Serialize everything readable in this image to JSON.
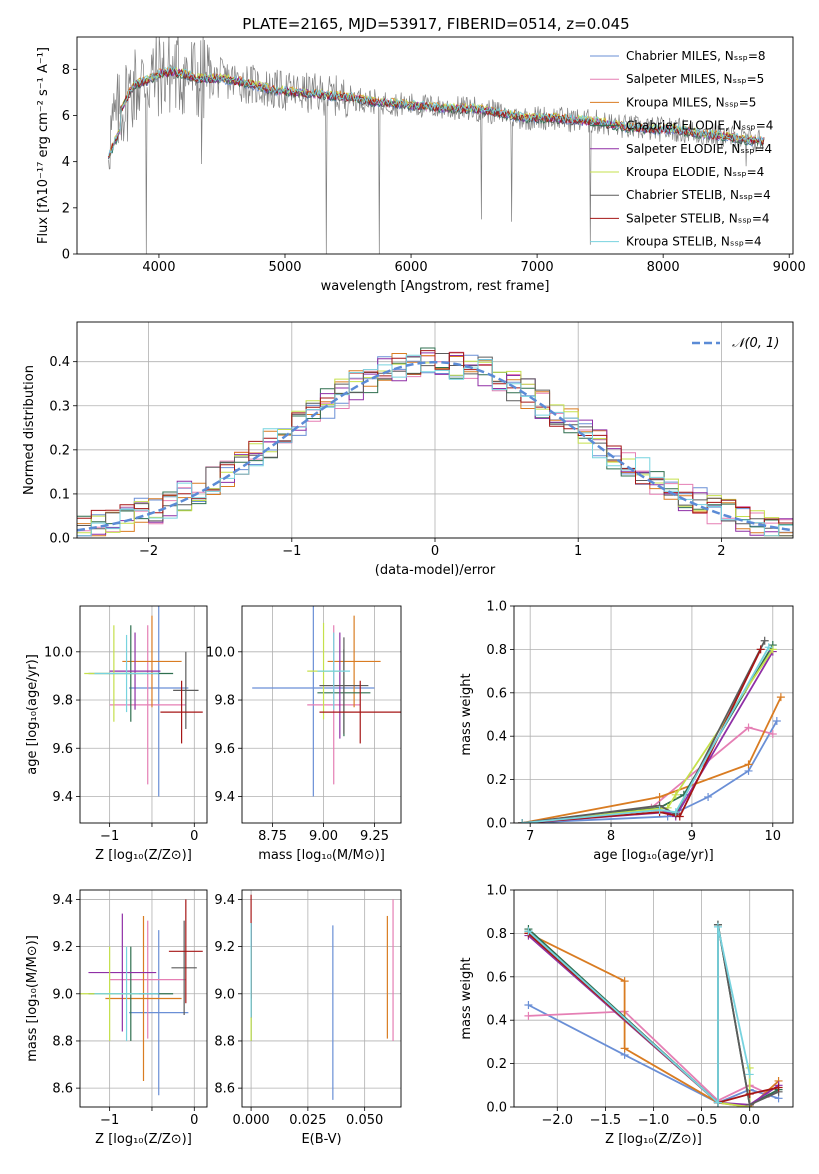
{
  "figure": {
    "title": "PLATE=2165, MJD=53917, FIBERID=0514, z=0.045"
  },
  "colors": {
    "series": [
      "#6a8fd6",
      "#e57fb4",
      "#d97c22",
      "#2f6f4f",
      "#8f2fa6",
      "#c5e04c",
      "#5c5c5c",
      "#a51616",
      "#77d3df"
    ],
    "grid": "#b0b0b0",
    "observed": "#808080"
  },
  "chart_data": [
    {
      "type": "line",
      "title": "PLATE=2165, MJD=53917, FIBERID=0514, z=0.045",
      "xlabel": "wavelength [Angstrom, rest frame]",
      "ylabel": "Flux [fλ10⁻¹⁷ erg cm⁻² s⁻¹ A⁻¹]",
      "xlim": [
        3350,
        9030
      ],
      "ylim": [
        0,
        9.4
      ],
      "xticks": [
        4000,
        5000,
        6000,
        7000,
        8000,
        9000
      ],
      "yticks": [
        0,
        2,
        4,
        6,
        8
      ],
      "grid": false,
      "legend_position": "top-right",
      "legend": [
        "Chabrier MILES, Nₛₛₚ=8",
        "Salpeter MILES, Nₛₛₚ=5",
        "Kroupa MILES, Nₛₛₚ=5",
        "Chabrier ELODIE, Nₛₛₚ=4",
        "Salpeter ELODIE, Nₛₛₚ=4",
        "Kroupa ELODIE, Nₛₛₚ=4",
        "Chabrier STELIB, Nₛₛₚ=4",
        "Salpeter STELIB, Nₛₛₚ=4",
        "Kroupa STELIB, Nₛₛₚ=4"
      ],
      "continuum": {
        "x": [
          3600,
          3700,
          3800,
          3900,
          4000,
          4100,
          4200,
          4300,
          4500,
          4700,
          4900,
          5100,
          5300,
          5500,
          5700,
          5900,
          6100,
          6300,
          6500,
          6700,
          6900,
          7100,
          7300,
          7500,
          7700,
          7900,
          8100,
          8300,
          8500,
          8700
        ],
        "y": [
          5.0,
          6.3,
          7.3,
          7.5,
          7.8,
          7.9,
          7.8,
          7.6,
          7.6,
          7.4,
          7.1,
          7.0,
          6.9,
          6.8,
          6.6,
          6.5,
          6.4,
          6.3,
          6.3,
          6.1,
          5.9,
          5.9,
          5.8,
          5.7,
          5.5,
          5.4,
          5.4,
          5.2,
          5.1,
          4.9
        ]
      },
      "observed_dips": [
        [
          3900,
          0
        ],
        [
          4340,
          3.9
        ],
        [
          5330,
          0
        ],
        [
          5750,
          0
        ],
        [
          6560,
          1.5
        ],
        [
          6800,
          1.4
        ],
        [
          7420,
          0.4
        ],
        [
          8660,
          3.8
        ]
      ]
    },
    {
      "type": "line",
      "xlabel": "(data-model)/error",
      "ylabel": "Normed distribution",
      "xlim": [
        -2.5,
        2.5
      ],
      "ylim": [
        0,
        0.49
      ],
      "xticks": [
        -2,
        -1,
        0,
        1,
        2
      ],
      "yticks": [
        0.0,
        0.1,
        0.2,
        0.3,
        0.4
      ],
      "grid": true,
      "legend_position": "top-right",
      "legend": [
        "𝒩(0, 1)"
      ],
      "histogram_bins": 50,
      "note_series": "one step histogram per model, same colors as spectrum legend"
    },
    {
      "type": "scatter",
      "xlabel": "Z [log₁₀(Z/Z⊙)]",
      "ylabel": "age  [log₁₀(age/yr)]",
      "xlim": [
        -1.35,
        0.15
      ],
      "ylim": [
        9.29,
        10.19
      ],
      "xticks": [
        -1,
        -0.5,
        0
      ],
      "xtick_labels": [
        "−1",
        "",
        "0"
      ],
      "yticks": [
        9.4,
        9.6,
        9.8,
        10.0
      ],
      "grid": true,
      "points": [
        {
          "x": -0.42,
          "xerr": 0.35,
          "y": 9.85,
          "yerr": 0.45
        },
        {
          "x": -0.55,
          "xerr": 0.45,
          "y": 9.78,
          "yerr": 0.33
        },
        {
          "x": -0.5,
          "xerr": 0.35,
          "y": 9.96,
          "yerr": 0.19
        },
        {
          "x": -0.75,
          "xerr": 0.5,
          "y": 9.91,
          "yerr": 0.2
        },
        {
          "x": -0.7,
          "xerr": 0.3,
          "y": 9.92,
          "yerr": 0.16
        },
        {
          "x": -0.95,
          "xerr": 0.35,
          "y": 9.91,
          "yerr": 0.2
        },
        {
          "x": -0.1,
          "xerr": 0.15,
          "y": 9.84,
          "yerr": 0.16
        },
        {
          "x": -0.15,
          "xerr": 0.25,
          "y": 9.75,
          "yerr": 0.13
        },
        {
          "x": -0.8,
          "xerr": 0.38,
          "y": 9.91,
          "yerr": 0.16
        }
      ]
    },
    {
      "type": "scatter",
      "xlabel": "mass [log₁₀(M/M⊙)]",
      "ylabel": "",
      "xlim": [
        8.6,
        9.38
      ],
      "ylim": [
        9.29,
        10.19
      ],
      "xticks": [
        8.75,
        9.0,
        9.25
      ],
      "xtick_labels": [
        "8.75",
        "9.00",
        "9.25"
      ],
      "yticks": [
        9.4,
        9.6,
        9.8,
        10.0
      ],
      "grid": true,
      "points": [
        {
          "x": 8.95,
          "xerr": 0.3,
          "y": 9.85,
          "yerr": 0.45
        },
        {
          "x": 9.05,
          "xerr": 0.13,
          "y": 9.78,
          "yerr": 0.33
        },
        {
          "x": 9.15,
          "xerr": 0.13,
          "y": 9.96,
          "yerr": 0.19
        },
        {
          "x": 9.1,
          "xerr": 0.13,
          "y": 9.83,
          "yerr": 0.18
        },
        {
          "x": 9.08,
          "xerr": 0.1,
          "y": 9.86,
          "yerr": 0.22
        },
        {
          "x": 9.0,
          "xerr": 0.08,
          "y": 9.92,
          "yerr": 0.2
        },
        {
          "x": 9.1,
          "xerr": 0.12,
          "y": 9.86,
          "yerr": 0.2
        },
        {
          "x": 9.18,
          "xerr": 0.2,
          "y": 9.75,
          "yerr": 0.13
        },
        {
          "x": 9.05,
          "xerr": 0.08,
          "y": 9.92,
          "yerr": 0.16
        }
      ]
    },
    {
      "type": "line",
      "xlabel": "age  [log₁₀(age/yr)]",
      "ylabel": "mass weight",
      "xlim": [
        6.8,
        10.25
      ],
      "ylim": [
        0,
        1.0
      ],
      "xticks": [
        7,
        8,
        9,
        10
      ],
      "yticks": [
        0.0,
        0.2,
        0.4,
        0.6,
        0.8,
        1.0
      ],
      "grid": true,
      "series": [
        {
          "x": [
            6.9,
            8.7,
            9.2,
            9.7,
            10.05
          ],
          "y": [
            0.0,
            0.03,
            0.12,
            0.24,
            0.47
          ]
        },
        {
          "x": [
            6.9,
            8.5,
            9.7,
            10.0
          ],
          "y": [
            0.0,
            0.07,
            0.44,
            0.41
          ]
        },
        {
          "x": [
            6.9,
            8.6,
            9.7,
            10.1
          ],
          "y": [
            0.0,
            0.12,
            0.27,
            0.58
          ]
        },
        {
          "x": [
            6.9,
            8.6,
            8.9,
            10.0
          ],
          "y": [
            0.0,
            0.07,
            0.13,
            0.82
          ]
        },
        {
          "x": [
            6.9,
            8.7,
            8.8,
            10.0
          ],
          "y": [
            0.0,
            0.05,
            0.03,
            0.79
          ]
        },
        {
          "x": [
            6.9,
            8.7,
            8.8,
            10.0
          ],
          "y": [
            0.0,
            0.07,
            0.13,
            0.8
          ]
        },
        {
          "x": [
            6.9,
            8.6,
            8.8,
            9.9
          ],
          "y": [
            0.0,
            0.08,
            0.04,
            0.84
          ]
        },
        {
          "x": [
            6.9,
            8.6,
            8.85,
            9.85
          ],
          "y": [
            0.0,
            0.05,
            0.03,
            0.8
          ]
        },
        {
          "x": [
            6.9,
            8.6,
            8.8,
            9.95
          ],
          "y": [
            0.0,
            0.06,
            0.05,
            0.81
          ]
        }
      ]
    },
    {
      "type": "scatter",
      "xlabel": "Z [log₁₀(Z/Z⊙)]",
      "ylabel": "mass [log₁₀(M/M⊙)]",
      "xlim": [
        -1.35,
        0.15
      ],
      "ylim": [
        8.52,
        9.44
      ],
      "xticks": [
        -1,
        -0.5,
        0
      ],
      "xtick_labels": [
        "−1",
        "",
        "0"
      ],
      "yticks": [
        8.6,
        8.8,
        9.0,
        9.2,
        9.4
      ],
      "grid": true,
      "points": [
        {
          "x": -0.42,
          "xerr": 0.35,
          "y": 8.92,
          "yerr": 0.35
        },
        {
          "x": -0.55,
          "xerr": 0.45,
          "y": 9.06,
          "yerr": 0.25
        },
        {
          "x": -0.6,
          "xerr": 0.45,
          "y": 8.98,
          "yerr": 0.35
        },
        {
          "x": -0.75,
          "xerr": 0.5,
          "y": 9.0,
          "yerr": 0.2
        },
        {
          "x": -0.85,
          "xerr": 0.4,
          "y": 9.09,
          "yerr": 0.25
        },
        {
          "x": -1.0,
          "xerr": 0.35,
          "y": 9.0,
          "yerr": 0.2
        },
        {
          "x": -0.12,
          "xerr": 0.15,
          "y": 9.11,
          "yerr": 0.2
        },
        {
          "x": -0.1,
          "xerr": 0.2,
          "y": 9.18,
          "yerr": 0.22
        },
        {
          "x": -0.8,
          "xerr": 0.38,
          "y": 9.0,
          "yerr": 0.2
        }
      ]
    },
    {
      "type": "scatter",
      "xlabel": "E(B-V)",
      "ylabel": "",
      "xlim": [
        -0.004,
        0.066
      ],
      "ylim": [
        8.52,
        9.44
      ],
      "xticks": [
        0.0,
        0.025,
        0.05
      ],
      "xtick_labels": [
        "0.000",
        "0.025",
        "0.050"
      ],
      "yticks": [
        8.6,
        8.8,
        9.0,
        9.2,
        9.4
      ],
      "grid": true,
      "points": [
        {
          "x": 0.036,
          "y": 8.92,
          "yerr": 0.37
        },
        {
          "x": 0.0625,
          "y": 9.1,
          "yerr": 0.3
        },
        {
          "x": 0.06,
          "y": 9.07,
          "yerr": 0.26
        },
        {
          "x": 0.0,
          "y": 9.05,
          "yerr": 0.25
        },
        {
          "x": 0.0,
          "y": 9.1,
          "yerr": 0.2
        },
        {
          "x": 0.0,
          "y": 9.0,
          "yerr": 0.2
        },
        {
          "x": 0.0,
          "y": 9.1,
          "yerr": 0.2
        },
        {
          "x": 0.0,
          "y": 9.2,
          "yerr": 0.22
        },
        {
          "x": 0.0,
          "y": 9.1,
          "yerr": 0.2
        }
      ]
    },
    {
      "type": "line",
      "xlabel": "Z [log₁₀(Z/Z⊙)]",
      "ylabel": "mass weight",
      "xlim": [
        -2.45,
        0.45
      ],
      "ylim": [
        0,
        1.0
      ],
      "xticks": [
        -2.0,
        -1.5,
        -1.0,
        -0.5,
        0.0
      ],
      "xtick_labels": [
        "−2.0",
        "−1.5",
        "−1.0",
        "−0.5",
        "0.0"
      ],
      "yticks": [
        0.0,
        0.2,
        0.4,
        0.6,
        0.8,
        1.0
      ],
      "grid": true,
      "series": [
        {
          "x": [
            -2.3,
            -1.3,
            -0.33,
            0.0,
            0.3
          ],
          "y": [
            0.47,
            0.24,
            0.02,
            0.08,
            0.04
          ]
        },
        {
          "x": [
            -2.3,
            -1.3,
            -0.33,
            0.0,
            0.2
          ],
          "y": [
            0.42,
            0.44,
            0.03,
            0.1,
            0.06
          ]
        },
        {
          "x": [
            -2.3,
            -1.3,
            -1.3,
            -0.33,
            0.0,
            0.3
          ],
          "y": [
            0.8,
            0.58,
            0.27,
            0.02,
            0.0,
            0.12
          ]
        },
        {
          "x": [
            -2.3,
            -0.33,
            -0.33,
            0.0,
            0.3
          ],
          "y": [
            0.82,
            0.02,
            0.84,
            0.01,
            0.08
          ]
        },
        {
          "x": [
            -2.3,
            -0.33,
            0.0,
            0.3
          ],
          "y": [
            0.79,
            0.02,
            0.01,
            0.1
          ]
        },
        {
          "x": [
            -2.3,
            -0.33,
            0.0,
            0.0
          ],
          "y": [
            0.8,
            0.02,
            0.0,
            0.18
          ]
        },
        {
          "x": [
            -2.3,
            -0.33,
            -0.33,
            0.0,
            0.3
          ],
          "y": [
            0.81,
            0.02,
            0.84,
            0.01,
            0.07
          ]
        },
        {
          "x": [
            -2.3,
            -0.33,
            0.0,
            0.3
          ],
          "y": [
            0.8,
            0.02,
            0.06,
            0.09
          ]
        },
        {
          "x": [
            -2.3,
            -0.33,
            -0.33,
            0.0
          ],
          "y": [
            0.81,
            0.02,
            0.83,
            0.15
          ]
        }
      ]
    }
  ]
}
